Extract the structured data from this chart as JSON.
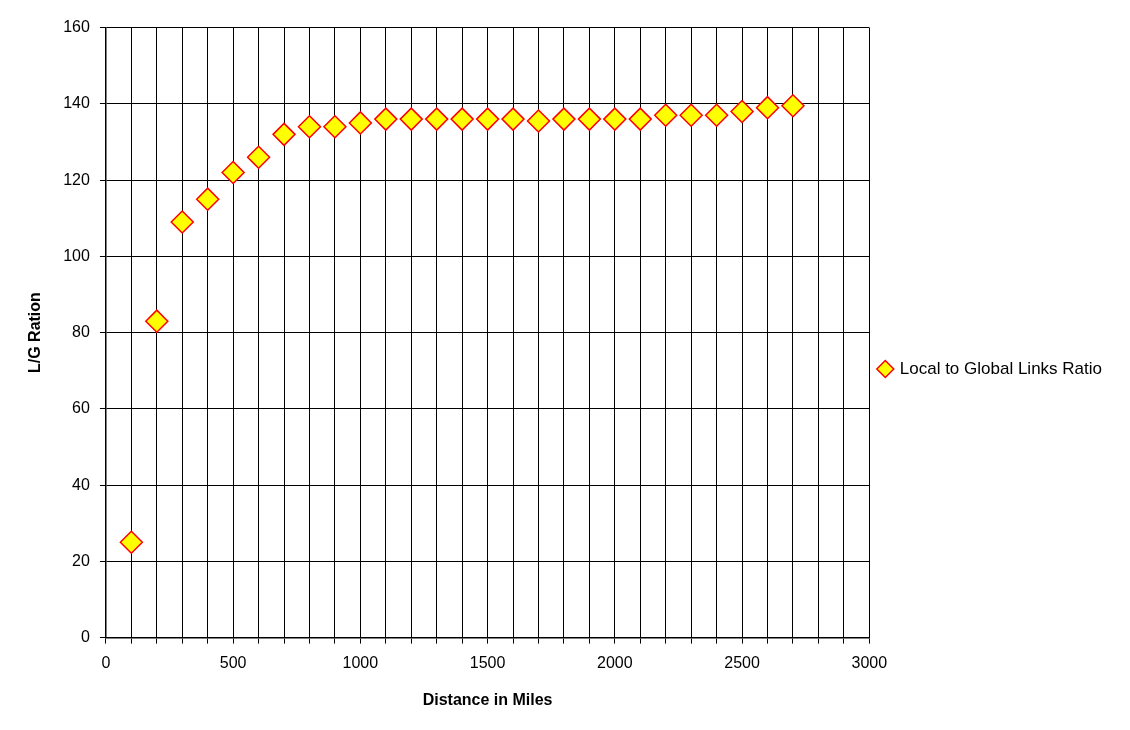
{
  "chart_data": {
    "type": "scatter",
    "xlabel": "Distance in Miles",
    "ylabel": "L/G Ration",
    "x": [
      100,
      200,
      300,
      400,
      500,
      600,
      700,
      800,
      900,
      1000,
      1100,
      1200,
      1300,
      1400,
      1500,
      1600,
      1700,
      1800,
      1900,
      2000,
      2100,
      2200,
      2300,
      2400,
      2500,
      2600,
      2700
    ],
    "series": [
      {
        "name": "Local to Global Links Ratio",
        "color": "#ffff00",
        "values": [
          25,
          83,
          109,
          115,
          122,
          126,
          132,
          134,
          134,
          135,
          136,
          136,
          136,
          136,
          136,
          136,
          135.5,
          136,
          136,
          136,
          136,
          137,
          137,
          137,
          138,
          139,
          139.5
        ]
      }
    ],
    "xlim": [
      0,
      3000
    ],
    "xticks": [
      0,
      {
        "value": 100,
        "label": null
      },
      {
        "value": 200,
        "label": null
      },
      {
        "value": 300,
        "label": null
      },
      {
        "value": 400,
        "label": null
      },
      500,
      {
        "value": 600,
        "label": null
      },
      {
        "value": 700,
        "label": null
      },
      {
        "value": 800,
        "label": null
      },
      {
        "value": 900,
        "label": null
      },
      1000,
      {
        "value": 1100,
        "label": null
      },
      {
        "value": 1200,
        "label": null
      },
      {
        "value": 1300,
        "label": null
      },
      {
        "value": 1400,
        "label": null
      },
      1500,
      {
        "value": 1600,
        "label": null
      },
      {
        "value": 1700,
        "label": null
      },
      {
        "value": 1800,
        "label": null
      },
      {
        "value": 1900,
        "label": null
      },
      2000,
      {
        "value": 2100,
        "label": null
      },
      {
        "value": 2200,
        "label": null
      },
      {
        "value": 2300,
        "label": null
      },
      {
        "value": 2400,
        "label": null
      },
      2500,
      {
        "value": 2600,
        "label": null
      },
      {
        "value": 2700,
        "label": null
      },
      {
        "value": 2800,
        "label": null
      },
      {
        "value": 2900,
        "label": null
      },
      3000
    ],
    "ylim": [
      0,
      160
    ],
    "yticks": [
      0,
      20,
      40,
      60,
      80,
      100,
      120,
      140,
      160
    ],
    "grid": true,
    "legend": "right",
    "marker": "diamond"
  }
}
